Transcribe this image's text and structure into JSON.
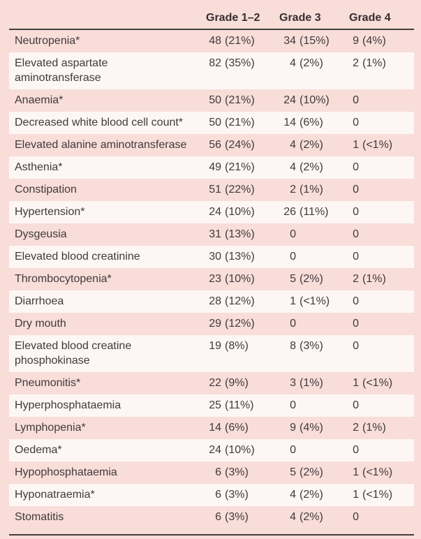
{
  "colors": {
    "page_background": "#f8ddd9",
    "stripe_background": "#fdf6f4",
    "text": "#403a3b",
    "header_text": "#362f30",
    "rule": "#453d3e"
  },
  "table": {
    "header": [
      "Grade 1–2",
      "Grade 3",
      "Grade 4"
    ],
    "rows": [
      {
        "label": "Neutropenia*",
        "values": [
          "48 (21%)",
          "34 (15%)",
          "9 (4%)"
        ]
      },
      {
        "label": "Elevated aspartate aminotransferase",
        "values": [
          "82 (35%)",
          "4 (2%)",
          "2 (1%)"
        ]
      },
      {
        "label": "Anaemia*",
        "values": [
          "50 (21%)",
          "24 (10%)",
          "0"
        ]
      },
      {
        "label": "Decreased white blood cell count*",
        "values": [
          "50 (21%)",
          "14 (6%)",
          "0"
        ]
      },
      {
        "label": "Elevated alanine aminotransferase",
        "values": [
          "56 (24%)",
          "4 (2%)",
          "1 (<1%)"
        ]
      },
      {
        "label": "Asthenia*",
        "values": [
          "49 (21%)",
          "4 (2%)",
          "0"
        ]
      },
      {
        "label": "Constipation",
        "values": [
          "51 (22%)",
          "2 (1%)",
          "0"
        ]
      },
      {
        "label": "Hypertension*",
        "values": [
          "24 (10%)",
          "26 (11%)",
          "0"
        ]
      },
      {
        "label": "Dysgeusia",
        "values": [
          "31 (13%)",
          "0",
          "0"
        ]
      },
      {
        "label": "Elevated blood creatinine",
        "values": [
          "30 (13%)",
          "0",
          "0"
        ]
      },
      {
        "label": "Thrombocytopenia*",
        "values": [
          "23 (10%)",
          "5 (2%)",
          "2 (1%)"
        ]
      },
      {
        "label": "Diarrhoea",
        "values": [
          "28 (12%)",
          "1 (<1%)",
          "0"
        ]
      },
      {
        "label": "Dry mouth",
        "values": [
          "29 (12%)",
          "0",
          "0"
        ]
      },
      {
        "label": "Elevated blood creatine phosphokinase",
        "values": [
          "19 (8%)",
          "8 (3%)",
          "0"
        ]
      },
      {
        "label": "Pneumonitis*",
        "values": [
          "22 (9%)",
          "3 (1%)",
          "1 (<1%)"
        ]
      },
      {
        "label": "Hyperphosphataemia",
        "values": [
          "25 (11%)",
          "0",
          "0"
        ]
      },
      {
        "label": "Lymphopenia*",
        "values": [
          "14 (6%)",
          "9 (4%)",
          "2 (1%)"
        ]
      },
      {
        "label": "Oedema*",
        "values": [
          "24 (10%)",
          "0",
          "0"
        ]
      },
      {
        "label": "Hypophosphataemia",
        "values": [
          "6 (3%)",
          "5 (2%)",
          "1 (<1%)"
        ]
      },
      {
        "label": "Hyponatraemia*",
        "values": [
          "6 (3%)",
          "4 (2%)",
          "1 (<1%)"
        ]
      },
      {
        "label": "Stomatitis",
        "values": [
          "6 (3%)",
          "4 (2%)",
          "0"
        ]
      }
    ]
  }
}
